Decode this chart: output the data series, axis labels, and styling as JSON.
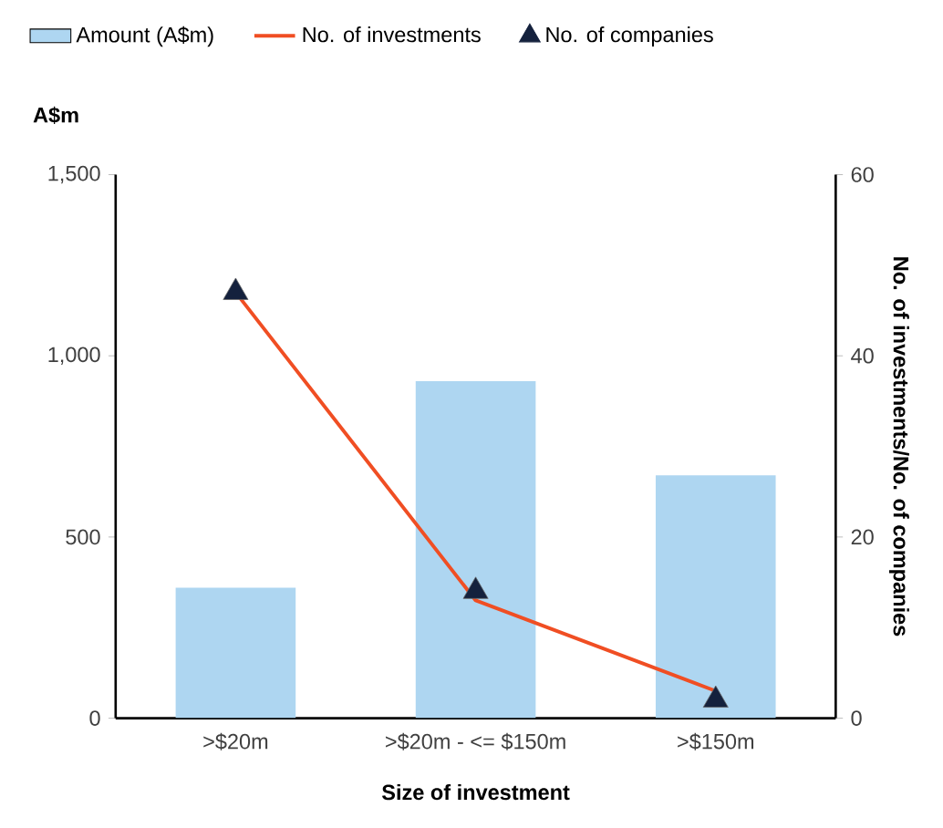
{
  "chart_data": {
    "type": "bar",
    "categories": [
      ">$20m",
      ">$20m - <= $150m",
      ">$150m"
    ],
    "xlabel": "Size of investment",
    "ylabel": "A$m",
    "y2label": "No. of investments/No. of companies",
    "ylim": [
      0,
      1500
    ],
    "yticks": [
      0,
      500,
      {
        "value": 1000,
        "label": "1,000"
      },
      {
        "value": 1500,
        "label": "1,500"
      }
    ],
    "y2lim": [
      0,
      60
    ],
    "y2ticks": [
      0,
      20,
      40,
      60
    ],
    "legend": "top left",
    "grid": false,
    "series": [
      {
        "name": "Amount (A$m)",
        "color": "#aed6f1",
        "values": [
          360,
          930,
          670
        ]
      },
      {
        "name": "No. of investments",
        "type": "line",
        "axis": "y2",
        "color": "#f04e23",
        "marker": "none",
        "line_style": "solid",
        "values": [
          47,
          13,
          3
        ]
      },
      {
        "name": "No. of companies",
        "type": "scatter",
        "axis": "y2",
        "color": "#14213d",
        "marker": "triangle",
        "values": [
          47,
          14,
          2
        ]
      }
    ]
  }
}
